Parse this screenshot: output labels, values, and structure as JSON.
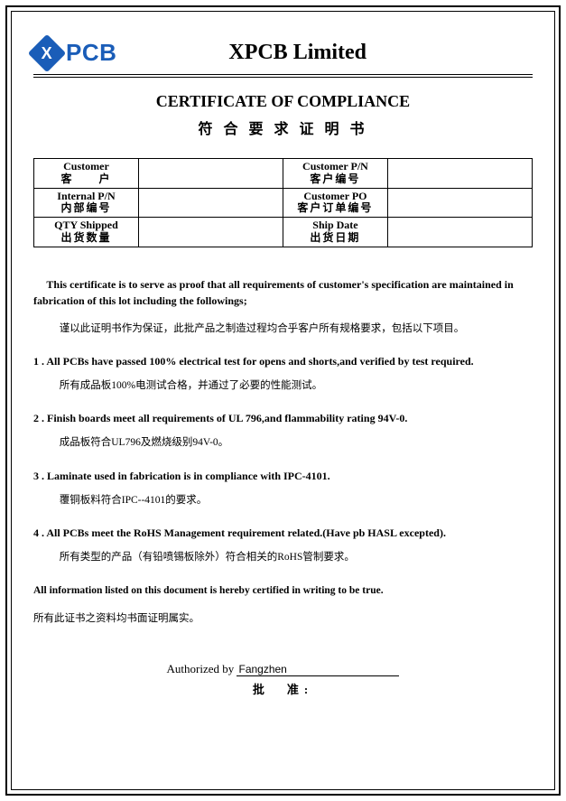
{
  "colors": {
    "brand_blue": "#1a5db8",
    "text": "#000000",
    "background": "#ffffff",
    "border": "#000000"
  },
  "typography": {
    "body_family": "Times New Roman",
    "logo_family": "Arial",
    "title_size_pt": 18,
    "body_size_pt": 12
  },
  "logo": {
    "mark_letter": "X",
    "text": "PCB"
  },
  "company_name": "XPCB  Limited",
  "cert_title": {
    "en": "CERTIFICATE OF COMPLIANCE",
    "zh": "符 合 要 求 证 明 书"
  },
  "info_table": {
    "rows": [
      {
        "left": {
          "en": "Customer",
          "zh": "客　　户"
        },
        "left_val": "",
        "right": {
          "en": "Customer  P/N",
          "zh": "客户编号"
        },
        "right_val": ""
      },
      {
        "left": {
          "en": "Internal   P/N",
          "zh": "内部编号"
        },
        "left_val": "",
        "right": {
          "en": "Customer   PO",
          "zh": "客户订单编号"
        },
        "right_val": ""
      },
      {
        "left": {
          "en": "QTY Shipped",
          "zh": "出货数量"
        },
        "left_val": "",
        "right": {
          "en": "Ship  Date",
          "zh": "出货日期"
        },
        "right_val": ""
      }
    ]
  },
  "intro": {
    "en": "This certificate is to serve as proof that all requirements of customer's specification are maintained in fabrication of this lot including the followings;",
    "zh": "谨以此证明书作为保证，此批产品之制造过程均合乎客户所有规格要求，包括以下项目。"
  },
  "items": [
    {
      "en": "1 . All PCBs have passed 100% electrical test for opens and shorts,and verified by test  required.",
      "zh": "所有成品板100%电测试合格，并通过了必要的性能测试。"
    },
    {
      "en": "2  . Finish boards meet all requirements of UL 796,and flammability rating 94V-0.",
      "zh": "成品板符合UL796及燃烧级别94V-0。"
    },
    {
      "en": "3 . Laminate used in fabrication is in compliance with IPC-4101.",
      "zh": "覆铜板料符合IPC--4101的要求。"
    },
    {
      "en": "4 . All PCBs meet the RoHS Management requirement related.(Have pb HASL excepted).",
      "zh": "所有类型的产品（有铅喷锡板除外）符合相关的RoHS管制要求。"
    }
  ],
  "closing": {
    "en": "All information listed on this document is hereby certified in writing to be true.",
    "zh": "所有此证书之资料均书面证明属实。"
  },
  "signature": {
    "label_en": "Authorized by",
    "name": "Fangzhen",
    "label_zh": "批　准:"
  }
}
